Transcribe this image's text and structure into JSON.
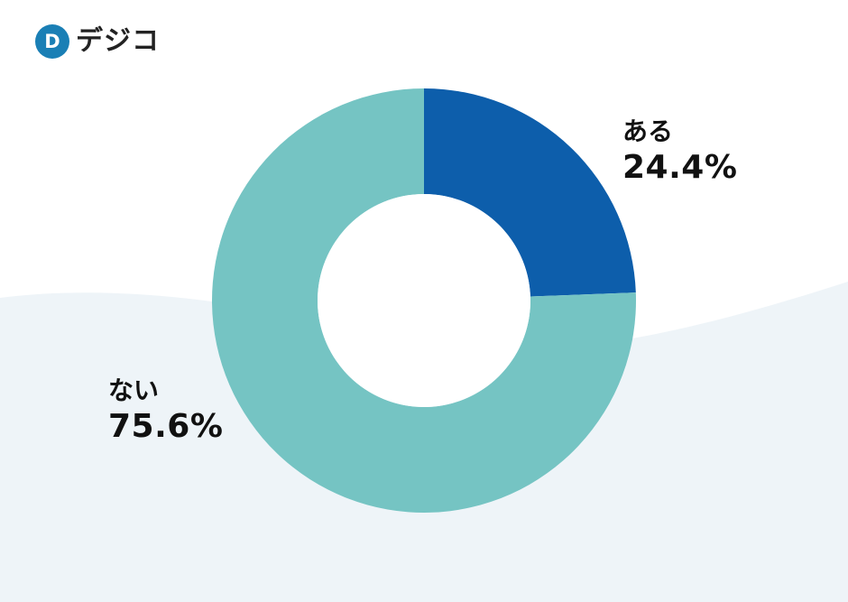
{
  "brand": {
    "logo_text": "デジコ",
    "logo_letter": "D",
    "logo_icon": "d-circle-icon",
    "logo_color": "#1a7fb5"
  },
  "colors": {
    "background_wave": "#eef4f8",
    "hole": "#ffffff"
  },
  "chart_data": {
    "type": "pie",
    "donut": true,
    "title": "",
    "slices": [
      {
        "label": "ある",
        "value": 24.4,
        "display": "24.4%",
        "color": "#0d5eab"
      },
      {
        "label": "ない",
        "value": 75.6,
        "display": "75.6%",
        "color": "#75c4c3"
      }
    ],
    "start_angle": "12 o'clock",
    "direction": "clockwise",
    "legend": "labels beside slices"
  }
}
